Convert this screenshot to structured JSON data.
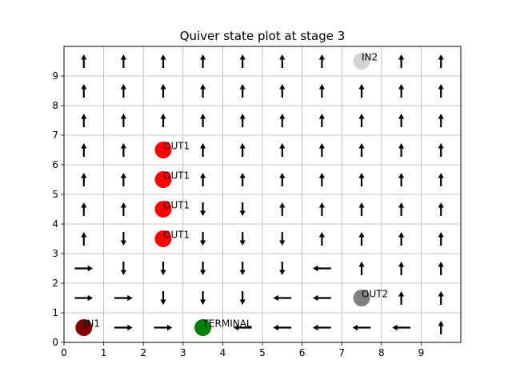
{
  "chart_data": {
    "type": "quiver",
    "title": "Quiver state plot at stage 3",
    "xlabel": "",
    "ylabel": "",
    "xlim": [
      0,
      10
    ],
    "ylim": [
      0,
      10
    ],
    "xticks": [
      "0",
      "1",
      "2",
      "3",
      "4",
      "5",
      "6",
      "7",
      "8",
      "9"
    ],
    "yticks": [
      "0",
      "1",
      "2",
      "3",
      "4",
      "5",
      "6",
      "7",
      "8",
      "9"
    ],
    "grid": true,
    "arrows": [
      {
        "x": 0.5,
        "y": 9.5,
        "dir": "up"
      },
      {
        "x": 0.5,
        "y": 8.5,
        "dir": "up"
      },
      {
        "x": 0.5,
        "y": 7.5,
        "dir": "up"
      },
      {
        "x": 0.5,
        "y": 6.5,
        "dir": "up"
      },
      {
        "x": 0.5,
        "y": 5.5,
        "dir": "up"
      },
      {
        "x": 0.5,
        "y": 4.5,
        "dir": "up"
      },
      {
        "x": 0.5,
        "y": 3.5,
        "dir": "up"
      },
      {
        "x": 0.5,
        "y": 2.5,
        "dir": "right"
      },
      {
        "x": 0.5,
        "y": 1.5,
        "dir": "right"
      },
      {
        "x": 0.5,
        "y": 0.5,
        "dir": "up"
      },
      {
        "x": 1.5,
        "y": 9.5,
        "dir": "up"
      },
      {
        "x": 1.5,
        "y": 8.5,
        "dir": "up"
      },
      {
        "x": 1.5,
        "y": 7.5,
        "dir": "up"
      },
      {
        "x": 1.5,
        "y": 6.5,
        "dir": "up"
      },
      {
        "x": 1.5,
        "y": 5.5,
        "dir": "up"
      },
      {
        "x": 1.5,
        "y": 4.5,
        "dir": "up"
      },
      {
        "x": 1.5,
        "y": 3.5,
        "dir": "down"
      },
      {
        "x": 1.5,
        "y": 2.5,
        "dir": "down"
      },
      {
        "x": 1.5,
        "y": 1.5,
        "dir": "right"
      },
      {
        "x": 1.5,
        "y": 0.5,
        "dir": "right"
      },
      {
        "x": 2.5,
        "y": 9.5,
        "dir": "up"
      },
      {
        "x": 2.5,
        "y": 8.5,
        "dir": "up"
      },
      {
        "x": 2.5,
        "y": 7.5,
        "dir": "up"
      },
      {
        "x": 2.5,
        "y": 2.5,
        "dir": "down"
      },
      {
        "x": 2.5,
        "y": 1.5,
        "dir": "down"
      },
      {
        "x": 2.5,
        "y": 0.5,
        "dir": "right"
      },
      {
        "x": 3.5,
        "y": 9.5,
        "dir": "up"
      },
      {
        "x": 3.5,
        "y": 8.5,
        "dir": "up"
      },
      {
        "x": 3.5,
        "y": 7.5,
        "dir": "up"
      },
      {
        "x": 3.5,
        "y": 6.5,
        "dir": "up"
      },
      {
        "x": 3.5,
        "y": 5.5,
        "dir": "up"
      },
      {
        "x": 3.5,
        "y": 4.5,
        "dir": "down"
      },
      {
        "x": 3.5,
        "y": 3.5,
        "dir": "down"
      },
      {
        "x": 3.5,
        "y": 2.5,
        "dir": "down"
      },
      {
        "x": 3.5,
        "y": 1.5,
        "dir": "down"
      },
      {
        "x": 4.5,
        "y": 9.5,
        "dir": "up"
      },
      {
        "x": 4.5,
        "y": 8.5,
        "dir": "up"
      },
      {
        "x": 4.5,
        "y": 7.5,
        "dir": "up"
      },
      {
        "x": 4.5,
        "y": 6.5,
        "dir": "up"
      },
      {
        "x": 4.5,
        "y": 5.5,
        "dir": "up"
      },
      {
        "x": 4.5,
        "y": 4.5,
        "dir": "down"
      },
      {
        "x": 4.5,
        "y": 3.5,
        "dir": "down"
      },
      {
        "x": 4.5,
        "y": 2.5,
        "dir": "down"
      },
      {
        "x": 4.5,
        "y": 1.5,
        "dir": "down"
      },
      {
        "x": 4.5,
        "y": 0.5,
        "dir": "left"
      },
      {
        "x": 5.5,
        "y": 9.5,
        "dir": "up"
      },
      {
        "x": 5.5,
        "y": 8.5,
        "dir": "up"
      },
      {
        "x": 5.5,
        "y": 7.5,
        "dir": "up"
      },
      {
        "x": 5.5,
        "y": 6.5,
        "dir": "up"
      },
      {
        "x": 5.5,
        "y": 5.5,
        "dir": "up"
      },
      {
        "x": 5.5,
        "y": 4.5,
        "dir": "up"
      },
      {
        "x": 5.5,
        "y": 3.5,
        "dir": "down"
      },
      {
        "x": 5.5,
        "y": 2.5,
        "dir": "down"
      },
      {
        "x": 5.5,
        "y": 1.5,
        "dir": "left"
      },
      {
        "x": 5.5,
        "y": 0.5,
        "dir": "left"
      },
      {
        "x": 6.5,
        "y": 9.5,
        "dir": "up"
      },
      {
        "x": 6.5,
        "y": 8.5,
        "dir": "up"
      },
      {
        "x": 6.5,
        "y": 7.5,
        "dir": "up"
      },
      {
        "x": 6.5,
        "y": 6.5,
        "dir": "up"
      },
      {
        "x": 6.5,
        "y": 5.5,
        "dir": "up"
      },
      {
        "x": 6.5,
        "y": 4.5,
        "dir": "up"
      },
      {
        "x": 6.5,
        "y": 3.5,
        "dir": "up"
      },
      {
        "x": 6.5,
        "y": 2.5,
        "dir": "left"
      },
      {
        "x": 6.5,
        "y": 1.5,
        "dir": "left"
      },
      {
        "x": 6.5,
        "y": 0.5,
        "dir": "left"
      },
      {
        "x": 7.5,
        "y": 8.5,
        "dir": "up"
      },
      {
        "x": 7.5,
        "y": 7.5,
        "dir": "up"
      },
      {
        "x": 7.5,
        "y": 6.5,
        "dir": "up"
      },
      {
        "x": 7.5,
        "y": 5.5,
        "dir": "up"
      },
      {
        "x": 7.5,
        "y": 4.5,
        "dir": "up"
      },
      {
        "x": 7.5,
        "y": 3.5,
        "dir": "up"
      },
      {
        "x": 7.5,
        "y": 2.5,
        "dir": "up"
      },
      {
        "x": 7.5,
        "y": 0.5,
        "dir": "left"
      },
      {
        "x": 8.5,
        "y": 9.5,
        "dir": "up"
      },
      {
        "x": 8.5,
        "y": 8.5,
        "dir": "up"
      },
      {
        "x": 8.5,
        "y": 7.5,
        "dir": "up"
      },
      {
        "x": 8.5,
        "y": 6.5,
        "dir": "up"
      },
      {
        "x": 8.5,
        "y": 5.5,
        "dir": "up"
      },
      {
        "x": 8.5,
        "y": 4.5,
        "dir": "up"
      },
      {
        "x": 8.5,
        "y": 3.5,
        "dir": "up"
      },
      {
        "x": 8.5,
        "y": 2.5,
        "dir": "up"
      },
      {
        "x": 8.5,
        "y": 1.5,
        "dir": "up"
      },
      {
        "x": 8.5,
        "y": 0.5,
        "dir": "left"
      },
      {
        "x": 9.5,
        "y": 9.5,
        "dir": "up"
      },
      {
        "x": 9.5,
        "y": 8.5,
        "dir": "up"
      },
      {
        "x": 9.5,
        "y": 7.5,
        "dir": "up"
      },
      {
        "x": 9.5,
        "y": 6.5,
        "dir": "up"
      },
      {
        "x": 9.5,
        "y": 5.5,
        "dir": "up"
      },
      {
        "x": 9.5,
        "y": 4.5,
        "dir": "up"
      },
      {
        "x": 9.5,
        "y": 3.5,
        "dir": "up"
      },
      {
        "x": 9.5,
        "y": 2.5,
        "dir": "up"
      },
      {
        "x": 9.5,
        "y": 1.5,
        "dir": "up"
      },
      {
        "x": 9.5,
        "y": 0.5,
        "dir": "up"
      }
    ],
    "points": [
      {
        "x": 2.5,
        "y": 6.5,
        "label": "OUT1",
        "color": "#ff0000"
      },
      {
        "x": 2.5,
        "y": 5.5,
        "label": "OUT1",
        "color": "#ff0000"
      },
      {
        "x": 2.5,
        "y": 4.5,
        "label": "OUT1",
        "color": "#ff0000"
      },
      {
        "x": 2.5,
        "y": 3.5,
        "label": "OUT1",
        "color": "#ff0000"
      },
      {
        "x": 7.5,
        "y": 9.5,
        "label": "IN2",
        "color": "#d3d3d3"
      },
      {
        "x": 7.5,
        "y": 1.5,
        "label": "OUT2",
        "color": "#808080"
      },
      {
        "x": 0.5,
        "y": 0.5,
        "label": "IN1",
        "color": "#800000"
      },
      {
        "x": 3.5,
        "y": 0.5,
        "label": "TERMINAL",
        "color": "#008000"
      }
    ]
  }
}
